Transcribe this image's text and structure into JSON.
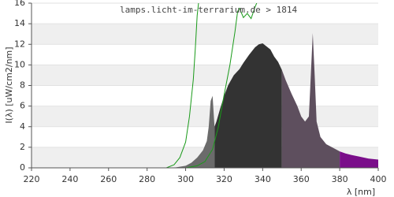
{
  "chart_data": {
    "type": "area",
    "watermark": "lamps.licht-im-terrarium.de > 1814",
    "x_label": "λ [nm]",
    "y_label": "I(λ)  [uW/cm2/nm]",
    "xlim": [
      220,
      400
    ],
    "xticks": [
      220,
      240,
      260,
      280,
      300,
      320,
      340,
      360,
      380,
      400
    ],
    "ylim": [
      0,
      16
    ],
    "yticks": [
      0,
      2,
      4,
      6,
      8,
      10,
      12,
      14,
      16
    ],
    "grid": true,
    "series": [
      {
        "type": "area",
        "color": "#6b6b6b",
        "x": [
          290,
          295,
          300,
          303,
          306,
          309,
          311,
          312,
          313,
          314,
          315
        ],
        "values": [
          0,
          0.05,
          0.2,
          0.5,
          1,
          1.7,
          2.6,
          4,
          6.5,
          7,
          4
        ]
      },
      {
        "type": "area",
        "color": "#333333",
        "x": [
          315,
          316,
          318,
          320,
          322,
          325,
          328,
          330,
          333,
          336,
          338,
          340,
          342,
          344,
          346,
          348,
          350
        ],
        "values": [
          4,
          4.5,
          5.8,
          7,
          8,
          9,
          9.6,
          10.2,
          11,
          11.7,
          12,
          12.1,
          11.8,
          11.5,
          10.8,
          10.3,
          9.5
        ]
      },
      {
        "type": "area",
        "color": "#5e4f5e",
        "x": [
          350,
          352,
          355,
          358,
          360,
          362,
          364,
          365,
          366,
          367,
          368,
          370,
          373,
          376,
          380
        ],
        "values": [
          9.5,
          8.5,
          7.2,
          6,
          5,
          4.5,
          5,
          9,
          13.1,
          9,
          4.5,
          3,
          2.3,
          2,
          1.6
        ]
      },
      {
        "type": "area",
        "color": "#7a0e8a",
        "x": [
          380,
          383,
          386,
          390,
          395,
          400
        ],
        "values": [
          1.6,
          1.4,
          1.25,
          1.1,
          0.9,
          0.8
        ]
      },
      {
        "type": "line",
        "color": "#1a9a1a",
        "x": [
          290,
          294,
          297,
          300,
          302,
          304,
          305,
          306,
          307
        ],
        "values": [
          0,
          0.3,
          1,
          2.5,
          5,
          8.6,
          11.5,
          14.8,
          16.5
        ]
      },
      {
        "type": "line",
        "color": "#1a9a1a",
        "x": [
          300,
          306,
          310,
          314,
          317,
          320,
          323,
          325.6,
          327,
          328,
          330,
          332,
          334,
          336,
          338
        ],
        "values": [
          0,
          0.2,
          0.6,
          1.8,
          4,
          7.1,
          10,
          13.2,
          15.2,
          15.5,
          14.6,
          15,
          14.5,
          15.6,
          16.5
        ]
      }
    ]
  }
}
